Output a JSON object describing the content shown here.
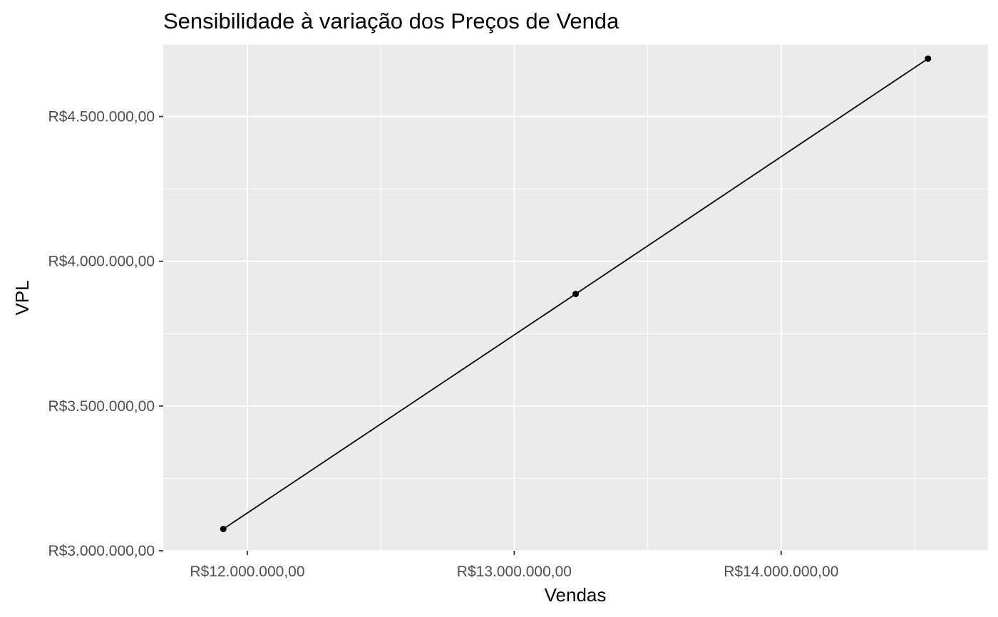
{
  "chart_data": {
    "type": "line",
    "title": "Sensibilidade à variação dos Preços de Venda",
    "xlabel": "Vendas",
    "ylabel": "VPL",
    "x": [
      11910000,
      13230000,
      14550000
    ],
    "series": [
      {
        "values": [
          3075000,
          3887000,
          4700000
        ]
      }
    ],
    "xlim": [
      11685000,
      14775000
    ],
    "ylim": [
      3000000,
      4750000
    ],
    "x_ticks": [
      12000000,
      13000000,
      14000000
    ],
    "x_tick_labels": [
      "R$12.000.000,00",
      "R$13.000.000,00",
      "R$14.000.000,00"
    ],
    "x_minor_ticks": [
      12500000,
      13500000,
      14500000
    ],
    "y_ticks": [
      3000000,
      3500000,
      4000000,
      4500000
    ],
    "y_tick_labels": [
      "R$3.000.000,00",
      "R$3.500.000,00",
      "R$4.000.000,00",
      "R$4.500.000,00"
    ],
    "y_minor_ticks": [
      3250000,
      3750000,
      4250000,
      4750000
    ],
    "grid": true,
    "colors": {
      "panel": "#ebebeb",
      "grid": "#ffffff",
      "line": "#000000",
      "tick_text": "#4d4d4d"
    }
  }
}
